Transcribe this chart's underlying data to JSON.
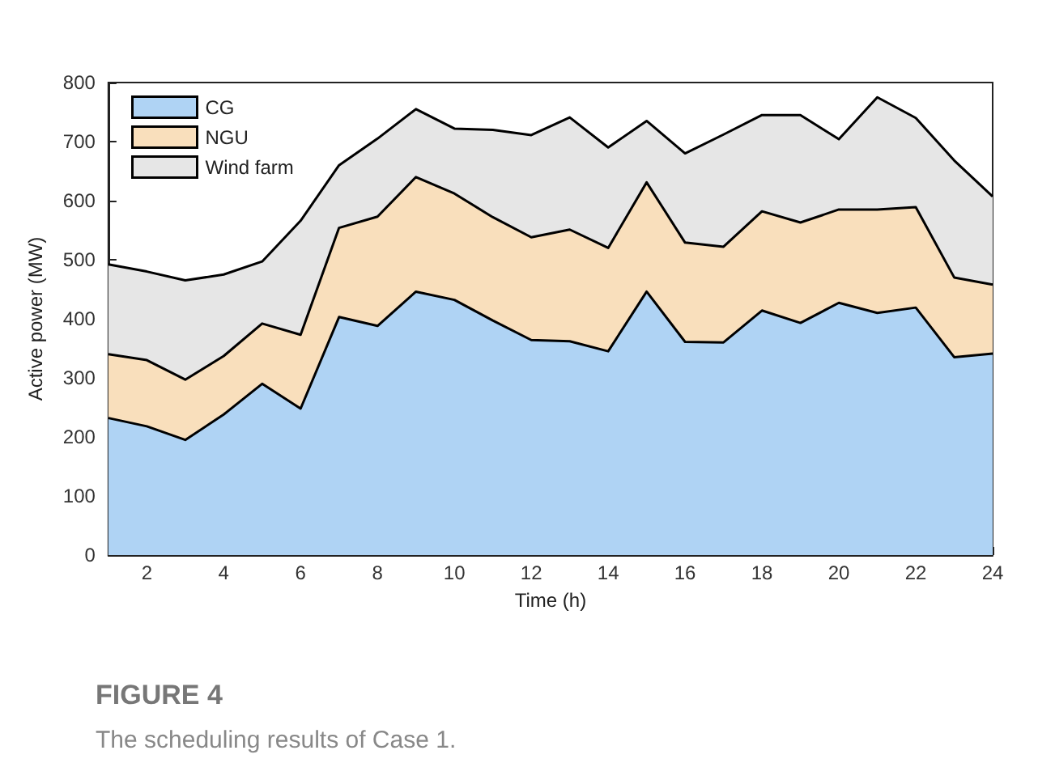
{
  "chart_data": {
    "type": "area",
    "stacked": true,
    "title": "FIGURE 4",
    "subtitle": "The scheduling results of Case 1.",
    "xlabel": "Time (h)",
    "ylabel": "Active power (MW)",
    "x": [
      1,
      2,
      3,
      4,
      5,
      6,
      7,
      8,
      9,
      10,
      11,
      12,
      13,
      14,
      15,
      16,
      17,
      18,
      19,
      20,
      21,
      22,
      23,
      24
    ],
    "series": [
      {
        "name": "CG",
        "color": "#afd3f4",
        "values": [
          232,
          218,
          195,
          238,
          290,
          248,
          403,
          388,
          446,
          432,
          397,
          364,
          362,
          345,
          446,
          361,
          360,
          414,
          393,
          427,
          410,
          419,
          335,
          341
        ]
      },
      {
        "name": "NGU",
        "color": "#f9dfbc",
        "values": [
          108,
          112,
          102,
          99,
          102,
          125,
          151,
          185,
          194,
          180,
          175,
          174,
          189,
          175,
          185,
          168,
          162,
          168,
          170,
          158,
          175,
          170,
          135,
          117
        ]
      },
      {
        "name": "Wind farm",
        "color": "#e6e6e6",
        "values": [
          152,
          150,
          168,
          138,
          105,
          193,
          106,
          132,
          115,
          110,
          148,
          173,
          190,
          170,
          104,
          151,
          190,
          163,
          182,
          119,
          190,
          151,
          198,
          149
        ]
      }
    ],
    "xlim": [
      1,
      24
    ],
    "xticks": [
      2,
      4,
      6,
      8,
      10,
      12,
      14,
      16,
      18,
      20,
      22,
      24
    ],
    "ylim": [
      0,
      800
    ],
    "yticks": [
      0,
      100,
      200,
      300,
      400,
      500,
      600,
      700,
      800
    ],
    "grid": false,
    "legend": "top left",
    "marker": "none",
    "line_style": "solid"
  }
}
